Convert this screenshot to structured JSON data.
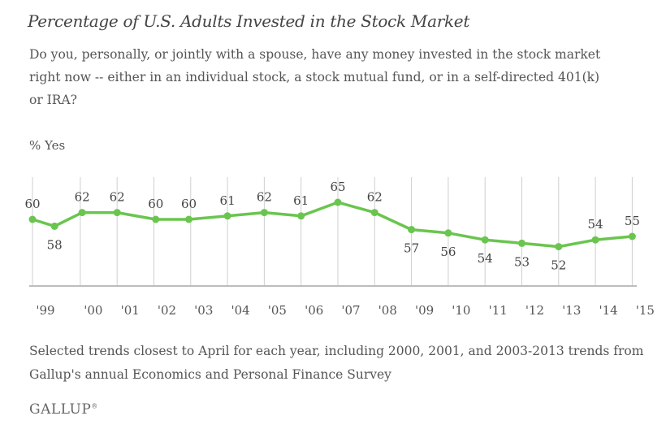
{
  "title": "Percentage of U.S. Adults Invested in the Stock Market",
  "question": "Do you, personally, or jointly with a spouse, have any money invested in the stock market right now -- either in an individual stock, a stock mutual fund, or in a self-directed 401(k) or IRA?",
  "note": "Selected trends closest to April for each year, including 2000, 2001, and 2003-2013 trends from Gallup's annual Economics and Personal Finance Survey",
  "brand": "GALLUP",
  "colors": {
    "line": "#6ac54f",
    "grid": "#cfcfcf",
    "axis": "#bdbdbd",
    "text": "#555555"
  },
  "chart_data": {
    "type": "line",
    "ylabel": "% Yes",
    "x_ticks": [
      "'99",
      "'00",
      "'01",
      "'02",
      "'03",
      "'04",
      "'05",
      "'06",
      "'07",
      "'08",
      "'09",
      "'10",
      "'11",
      "'12",
      "'13",
      "'14",
      "'15"
    ],
    "points": [
      {
        "x": 1999.0,
        "y": 60,
        "label": "60",
        "pos": "above"
      },
      {
        "x": 1999.6,
        "y": 58,
        "label": "58",
        "pos": "below"
      },
      {
        "x": 2000.35,
        "y": 62,
        "label": "62",
        "pos": "above"
      },
      {
        "x": 2001.3,
        "y": 62,
        "label": "62",
        "pos": "above"
      },
      {
        "x": 2002.35,
        "y": 60,
        "label": "60",
        "pos": "above"
      },
      {
        "x": 2003.25,
        "y": 60,
        "label": "60",
        "pos": "above"
      },
      {
        "x": 2004.3,
        "y": 61,
        "label": "61",
        "pos": "above"
      },
      {
        "x": 2005.3,
        "y": 62,
        "label": "62",
        "pos": "above"
      },
      {
        "x": 2006.3,
        "y": 61,
        "label": "61",
        "pos": "above"
      },
      {
        "x": 2007.3,
        "y": 65,
        "label": "65",
        "pos": "above"
      },
      {
        "x": 2008.3,
        "y": 62,
        "label": "62",
        "pos": "above"
      },
      {
        "x": 2009.3,
        "y": 57,
        "label": "57",
        "pos": "below"
      },
      {
        "x": 2010.3,
        "y": 56,
        "label": "56",
        "pos": "below"
      },
      {
        "x": 2011.3,
        "y": 54,
        "label": "54",
        "pos": "below"
      },
      {
        "x": 2012.3,
        "y": 53,
        "label": "53",
        "pos": "below"
      },
      {
        "x": 2013.3,
        "y": 52,
        "label": "52",
        "pos": "below"
      },
      {
        "x": 2014.3,
        "y": 54,
        "label": "54",
        "pos": "above"
      },
      {
        "x": 2015.3,
        "y": 55,
        "label": "55",
        "pos": "above"
      }
    ],
    "grid": "vertical",
    "legend": "none"
  }
}
